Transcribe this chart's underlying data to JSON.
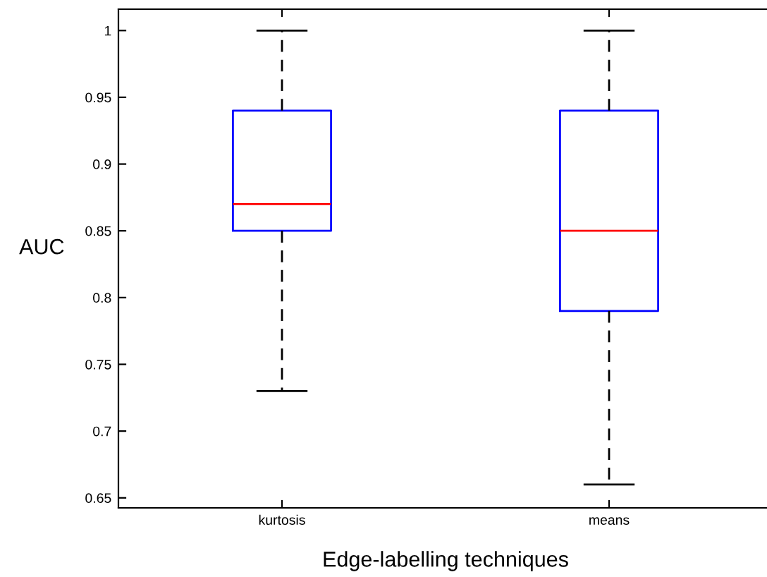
{
  "chart_data": {
    "type": "box",
    "xlabel": "Edge-labelling techniques",
    "ylabel": "AUC",
    "categories": [
      "kurtosis",
      "means"
    ],
    "boxes": [
      {
        "low": 0.73,
        "q1": 0.85,
        "median": 0.87,
        "q3": 0.94,
        "high": 1
      },
      {
        "low": 0.66,
        "q1": 0.79,
        "median": 0.85,
        "q3": 0.94,
        "high": 1
      }
    ],
    "color": "#0000ff",
    "ylim": [
      0.6425,
      1.016
    ],
    "yticks": [
      0.65,
      0.7,
      0.75,
      0.8,
      0.85,
      0.9,
      0.95,
      1
    ],
    "grid": false,
    "legend": false
  }
}
